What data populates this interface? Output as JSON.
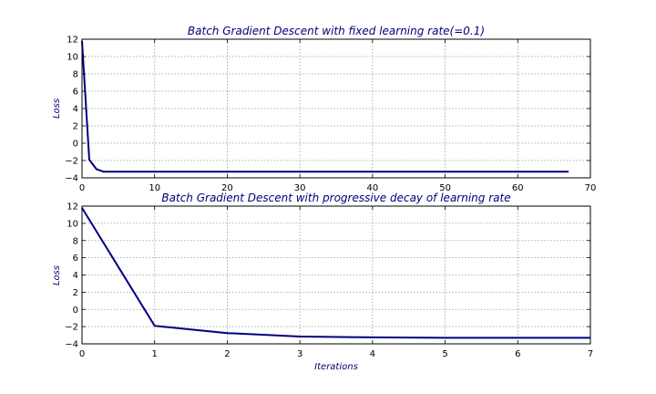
{
  "chart_data": [
    {
      "type": "line",
      "title": "Batch Gradient Descent with fixed learning rate(=0.1)",
      "xlabel": "",
      "ylabel": "Loss",
      "xlim": [
        0,
        70
      ],
      "ylim": [
        -4,
        12
      ],
      "xticks": [
        0,
        10,
        20,
        30,
        40,
        50,
        60,
        70
      ],
      "yticks": [
        -4,
        -2,
        0,
        2,
        4,
        6,
        8,
        10,
        12
      ],
      "grid": true,
      "series": [
        {
          "color": "#000080",
          "x": [
            0,
            1,
            2,
            3,
            4,
            5,
            10,
            15,
            20,
            25,
            30,
            35,
            40,
            45,
            50,
            55,
            60,
            65,
            67
          ],
          "y": [
            11.8,
            -1.9,
            -3.0,
            -3.3,
            -3.3,
            -3.3,
            -3.3,
            -3.3,
            -3.3,
            -3.3,
            -3.3,
            -3.3,
            -3.3,
            -3.3,
            -3.3,
            -3.3,
            -3.3,
            -3.3,
            -3.3
          ]
        }
      ]
    },
    {
      "type": "line",
      "title": "Batch Gradient Descent with progressive decay of learning rate",
      "xlabel": "Iterations",
      "ylabel": "Loss",
      "xlim": [
        0,
        7
      ],
      "ylim": [
        -4,
        12
      ],
      "xticks": [
        0,
        1,
        2,
        3,
        4,
        5,
        6,
        7
      ],
      "yticks": [
        -4,
        -2,
        0,
        2,
        4,
        6,
        8,
        10,
        12
      ],
      "grid": true,
      "series": [
        {
          "color": "#000080",
          "x": [
            0,
            1,
            2,
            3,
            4,
            5,
            6,
            7
          ],
          "y": [
            11.8,
            -1.9,
            -2.75,
            -3.15,
            -3.25,
            -3.3,
            -3.3,
            -3.3
          ]
        }
      ]
    }
  ]
}
